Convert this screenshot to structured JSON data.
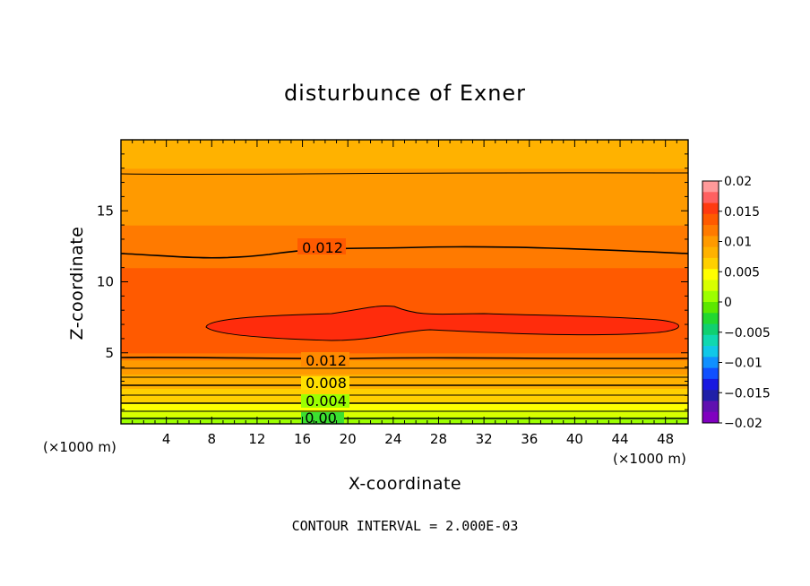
{
  "chart_data": {
    "type": "heatmap",
    "title": "disturbunce of Exner",
    "xlabel": "X-coordinate",
    "ylabel": "Z-coordinate",
    "x_unit": "(×1000 m)",
    "xlim": [
      0,
      50
    ],
    "ylim": [
      0,
      20
    ],
    "x_ticks": [
      4,
      8,
      12,
      16,
      20,
      24,
      28,
      32,
      36,
      40,
      44,
      48
    ],
    "y_ticks": [
      5,
      10,
      15
    ],
    "colorbar": {
      "levels": [
        0.02,
        0.015,
        0.01,
        0.005,
        0,
        -0.005,
        -0.01,
        -0.015,
        -0.02
      ],
      "labels": [
        "0.02",
        "0.015",
        "0.01",
        "0.005",
        "0",
        "−0.005",
        "−0.01",
        "−0.015",
        "−0.02"
      ],
      "colors": [
        "#ff9a9a",
        "#ff6060",
        "#ff3a10",
        "#ff5a00",
        "#ff7a00",
        "#ff9a00",
        "#ffb200",
        "#ffd000",
        "#ffff00",
        "#d8ff00",
        "#9cff00",
        "#5ce800",
        "#22d830",
        "#10d070",
        "#10d8b0",
        "#10c8e8",
        "#1090ff",
        "#1050ff",
        "#1818e0",
        "#2020a8",
        "#6010b0",
        "#8000c0"
      ]
    },
    "contour_labels": [
      "0.012",
      "0.012",
      "0.008",
      "0.004",
      "0.00"
    ],
    "contour_interval": 0.002,
    "field": {
      "z": [
        0,
        0.5,
        1.0,
        1.5,
        2.0,
        2.5,
        3.0,
        3.5,
        4.0,
        4.5,
        5.0,
        6.0,
        7.0,
        8.0,
        9.0,
        10.0,
        11.0,
        12.0,
        13.0,
        14.0,
        15.0,
        16.0,
        17.0,
        18.0,
        19.0,
        20.0
      ],
      "value": [
        0.0005,
        0.002,
        0.004,
        0.005,
        0.006,
        0.007,
        0.008,
        0.009,
        0.01,
        0.011,
        0.012,
        0.0135,
        0.0145,
        0.014,
        0.0135,
        0.013,
        0.0125,
        0.012,
        0.0115,
        0.011,
        0.0105,
        0.01,
        0.0095,
        0.009,
        0.0085,
        0.008
      ]
    }
  },
  "footer": {
    "contour_interval_text": "CONTOUR INTERVAL = 2.000E-03"
  }
}
